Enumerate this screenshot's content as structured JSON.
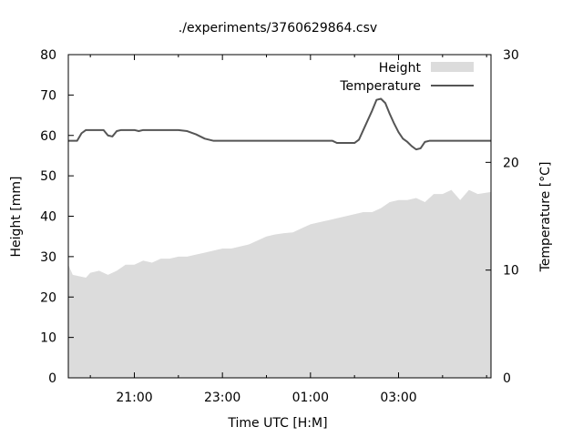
{
  "chart_data": {
    "type": "area",
    "title": "./experiments/3760629864.csv",
    "xlabel": "Time UTC [H:M]",
    "ylabel_left": "Height [mm]",
    "ylabel_right": "Temperature [°C]",
    "x_range_hours": [
      19.5,
      29.1
    ],
    "x_tick_labels": [
      "21:00",
      "23:00",
      "01:00",
      "03:00"
    ],
    "x_tick_hours": [
      21,
      23,
      25,
      27
    ],
    "y_left_range": [
      0,
      80
    ],
    "y_left_ticks": [
      "0",
      "10",
      "20",
      "30",
      "40",
      "50",
      "60",
      "70",
      "80"
    ],
    "y_right_range": [
      0,
      30
    ],
    "y_right_ticks": [
      "0",
      "10",
      "20",
      "30"
    ],
    "legend_position": "top-right",
    "grid": false,
    "series": [
      {
        "name": "Height",
        "type": "area",
        "axis": "left",
        "color": "#dcdcdc",
        "x": [
          19.5,
          19.6,
          19.9,
          20.0,
          20.2,
          20.4,
          20.6,
          20.8,
          21.0,
          21.2,
          21.4,
          21.6,
          21.8,
          22.0,
          22.2,
          22.4,
          22.6,
          22.8,
          23.0,
          23.2,
          23.4,
          23.6,
          23.8,
          24.0,
          24.2,
          24.4,
          24.6,
          24.8,
          25.0,
          25.2,
          25.4,
          25.6,
          25.8,
          26.0,
          26.2,
          26.4,
          26.6,
          26.8,
          27.0,
          27.2,
          27.4,
          27.6,
          27.8,
          28.0,
          28.2,
          28.4,
          28.6,
          28.8,
          29.1
        ],
        "values": [
          28,
          25.5,
          24.8,
          26,
          26.5,
          25.5,
          26.5,
          28,
          28,
          29,
          28.5,
          29.5,
          29.5,
          30,
          30,
          30.5,
          31,
          31.5,
          32,
          32,
          32.5,
          33,
          34,
          35,
          35.5,
          35.8,
          36,
          37,
          38,
          38.5,
          39,
          39.5,
          40,
          40.5,
          41,
          41,
          42,
          43.5,
          44,
          44,
          44.5,
          43.5,
          45.5,
          45.5,
          46.5,
          44,
          46.5,
          45.5,
          46
        ]
      },
      {
        "name": "Temperature",
        "type": "line",
        "axis": "right",
        "color": "#555555",
        "x": [
          19.5,
          19.7,
          19.8,
          19.9,
          20.0,
          20.3,
          20.4,
          20.5,
          20.6,
          20.7,
          21.0,
          21.1,
          21.2,
          21.3,
          22.0,
          22.2,
          22.4,
          22.6,
          22.8,
          25.5,
          25.6,
          25.8,
          26.0,
          26.1,
          26.2,
          26.4,
          26.5,
          26.6,
          26.7,
          26.8,
          26.9,
          27.0,
          27.1,
          27.2,
          27.3,
          27.4,
          27.5,
          27.6,
          27.7,
          27.8,
          28.0,
          29.1
        ],
        "values": [
          22,
          22,
          22.7,
          23,
          23,
          23,
          22.5,
          22.4,
          22.9,
          23,
          23,
          22.9,
          23,
          23,
          23,
          22.9,
          22.6,
          22.2,
          22,
          22,
          21.8,
          21.8,
          21.8,
          22.1,
          23,
          24.8,
          25.8,
          25.9,
          25.5,
          24.5,
          23.6,
          22.8,
          22.2,
          21.9,
          21.5,
          21.2,
          21.3,
          21.9,
          22,
          22,
          22,
          22
        ]
      }
    ]
  }
}
